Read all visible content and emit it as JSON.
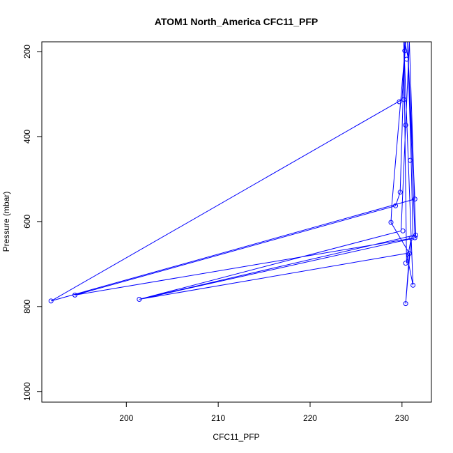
{
  "chart_data": {
    "type": "line",
    "title": "ATOM1 North_America CFC11_PFP",
    "xlabel": "CFC11_PFP",
    "ylabel": "Pressure (mbar)",
    "xlim": [
      190.8,
      233.2
    ],
    "ylim": [
      1025,
      177
    ],
    "y_reversed": true,
    "x_ticks": [
      "200",
      "210",
      "220",
      "230"
    ],
    "y_ticks": [
      "200",
      "400",
      "600",
      "800",
      "1000"
    ],
    "grid": false,
    "series": [
      {
        "color": "#0000ff",
        "marker": "open-circle",
        "points": [
          [
            230.3,
            198
          ],
          [
            230.5,
            218
          ],
          [
            230.2,
            313
          ],
          [
            229.7,
            318
          ],
          [
            230.4,
            373
          ],
          [
            230.9,
            456
          ],
          [
            229.8,
            531
          ],
          [
            231.4,
            547
          ],
          [
            229.3,
            563
          ],
          [
            228.8,
            602
          ],
          [
            230.1,
            622
          ],
          [
            231.5,
            632
          ],
          [
            231.4,
            638
          ],
          [
            231.0,
            639
          ],
          [
            230.8,
            675
          ],
          [
            230.4,
            698
          ],
          [
            231.2,
            750
          ],
          [
            194.4,
            773
          ],
          [
            201.4,
            783
          ],
          [
            191.8,
            787
          ],
          [
            230.4,
            793
          ]
        ],
        "path": [
          [
            229.7,
            177
          ],
          [
            230.4,
            177
          ],
          [
            230.0,
            313
          ],
          [
            191.8,
            787
          ],
          [
            231.4,
            547
          ],
          [
            230.6,
            177
          ],
          [
            231.0,
            456
          ],
          [
            231.2,
            639
          ],
          [
            194.4,
            773
          ],
          [
            229.3,
            563
          ],
          [
            229.8,
            531
          ],
          [
            230.3,
            177
          ],
          [
            230.7,
            218
          ],
          [
            231.4,
            632
          ],
          [
            201.4,
            783
          ],
          [
            229.9,
            622
          ],
          [
            230.4,
            373
          ],
          [
            230.8,
            177
          ],
          [
            231.5,
            638
          ],
          [
            201.4,
            783
          ],
          [
            230.5,
            675
          ],
          [
            231.2,
            750
          ],
          [
            230.2,
            177
          ],
          [
            230.5,
            698
          ],
          [
            231.0,
            639
          ],
          [
            230.4,
            793
          ],
          [
            230.8,
            675
          ],
          [
            228.8,
            602
          ],
          [
            228.9,
            560
          ],
          [
            230.4,
            177
          ]
        ]
      }
    ]
  }
}
